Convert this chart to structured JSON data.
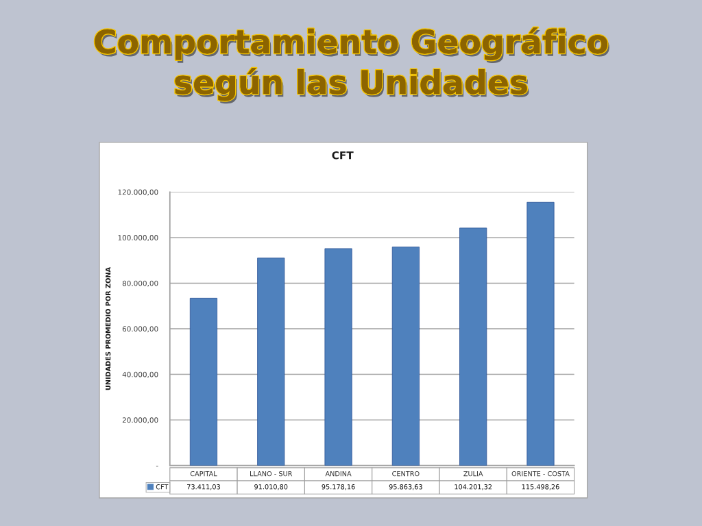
{
  "chart_data": {
    "type": "bar",
    "title": "Comportamiento Geográfico\nsegún las Unidades",
    "subtitle": "CFT",
    "ylabel": "UNIDADES PROMEDIO POR ZONA",
    "categories": [
      "CAPITAL",
      "LLANO - SUR",
      "ANDINA",
      "CENTRO",
      "ZULIA",
      "ORIENTE - COSTA"
    ],
    "series": [
      {
        "name": "CFT",
        "color": "#4f81bd",
        "values": [
          73411.03,
          91010.8,
          95178.16,
          95863.63,
          104201.32,
          115498.26
        ],
        "value_labels": [
          "73.411,03",
          "91.010,80",
          "95.178,16",
          "95.863,63",
          "104.201,32",
          "115.498,26"
        ]
      }
    ],
    "ylim": [
      0,
      120000
    ],
    "yticks": [
      {
        "value": 0,
        "label": "-"
      },
      {
        "value": 20000,
        "label": "20.000,00"
      },
      {
        "value": 40000,
        "label": "40.000,00"
      },
      {
        "value": 60000,
        "label": "60.000,00"
      },
      {
        "value": 80000,
        "label": "80.000,00"
      },
      {
        "value": 100000,
        "label": "100.000,00"
      },
      {
        "value": 120000,
        "label": "120.000,00"
      }
    ],
    "grid": "y",
    "legend": "bottom left"
  }
}
